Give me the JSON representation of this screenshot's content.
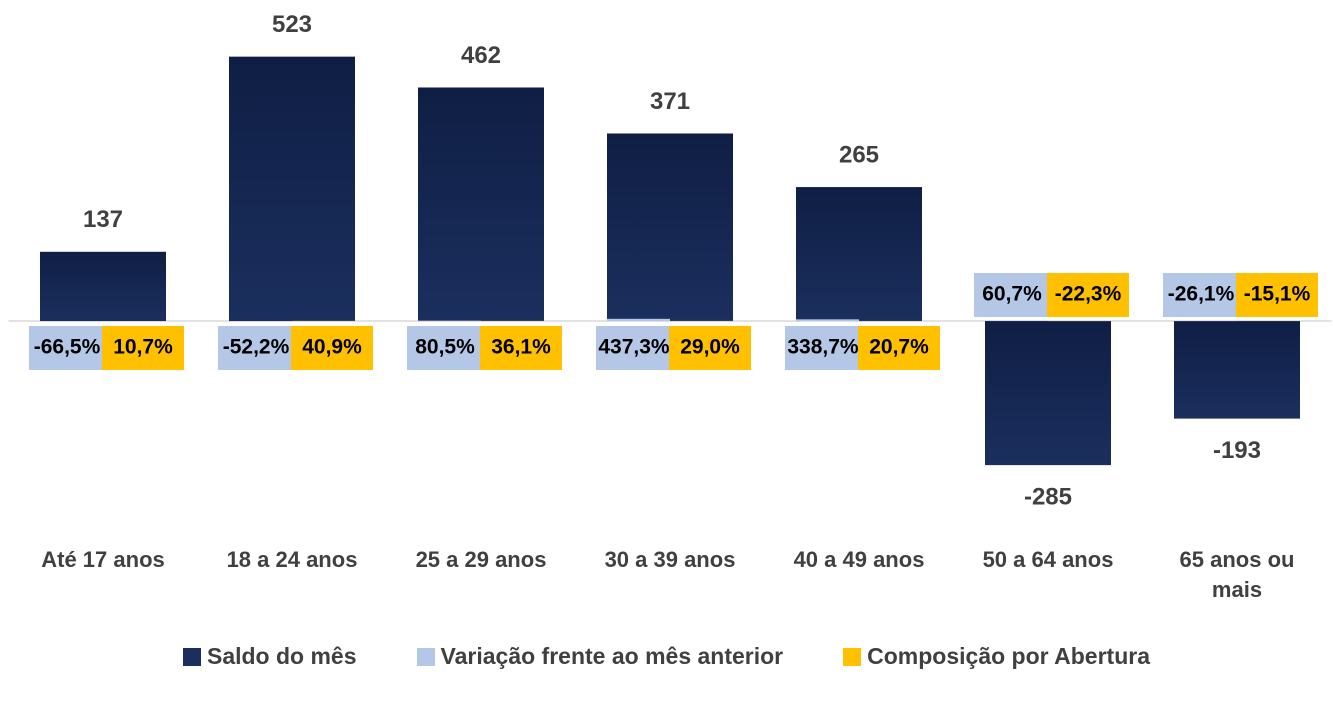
{
  "chart_data": {
    "type": "bar",
    "categories": [
      "Até 17 anos",
      "18 a 24 anos",
      "25 a 29 anos",
      "30 a 39 anos",
      "40 a 49 anos",
      "50 a 64 anos",
      "65 anos ou mais"
    ],
    "series": [
      {
        "name": "Saldo do mês",
        "color": "#1b2f5e",
        "values": [
          137,
          523,
          462,
          371,
          265,
          -285,
          -193
        ]
      },
      {
        "name": "Variação frente ao mês anterior",
        "color": "#b4c7e7",
        "axis": "y2",
        "values": [
          -66.5,
          -52.2,
          80.5,
          437.3,
          338.7,
          60.7,
          -26.1
        ],
        "value_labels": [
          "-66,5%",
          "-52,2%",
          "80,5%",
          "437,3%",
          "338,7%",
          "60,7%",
          "-26,1%"
        ]
      },
      {
        "name": "Composição por Abertura",
        "color": "#ffc000",
        "axis": "y2",
        "values": [
          10.7,
          40.9,
          36.1,
          29.0,
          20.7,
          -22.3,
          -15.1
        ],
        "value_labels": [
          "10,7%",
          "40,9%",
          "36,1%",
          "29,0%",
          "20,7%",
          "-22,3%",
          "-15,1%"
        ]
      }
    ],
    "ylim": [
      -300,
      550
    ],
    "y2lim": [
      -30000,
      55000
    ],
    "legend": "bottom"
  }
}
